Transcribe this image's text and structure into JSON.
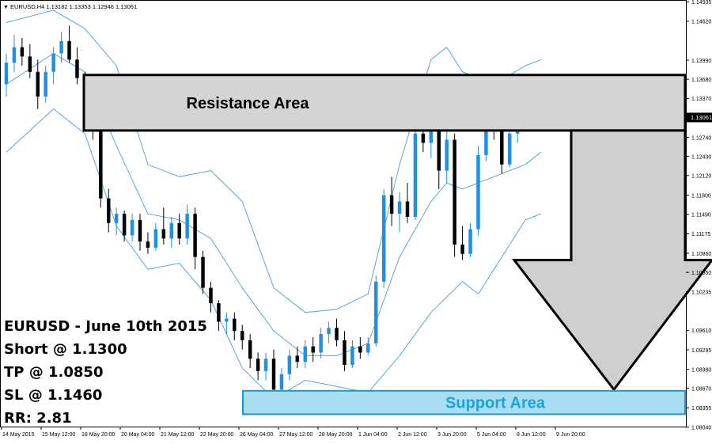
{
  "chart_header": "EURUSD,H4  1.13182 1.13353 1.12946 1.13061",
  "chart_data": {
    "type": "candlestick",
    "symbol": "EURUSD",
    "timeframe": "H4",
    "ohlc_header": [
      1.13182,
      1.13353,
      1.12946,
      1.13061
    ],
    "current_price": "1.13061",
    "ylim": [
      1.0805,
      1.1494
    ],
    "y_ticks": [
      "1.14935",
      "1.14620",
      "1.13990",
      "1.13680",
      "1.13370",
      "1.13061",
      "1.12740",
      "1.12430",
      "1.12120",
      "1.11800",
      "1.11490",
      "1.11175",
      "1.10860",
      "1.10550",
      "1.10235",
      "1.09610",
      "1.09295",
      "1.08980",
      "1.08670",
      "1.08355",
      "1.08040"
    ],
    "x_ticks": [
      "14 May 2015",
      "15 May 12:00",
      "18 May 20:00",
      "20 May 04:00",
      "21 May 12:00",
      "22 May 20:00",
      "26 May 04:00",
      "27 May 12:00",
      "28 May 20:00",
      "1 Jun 04:00",
      "2 Jun 12:00",
      "3 Jun 20:00",
      "5 Jun 04:00",
      "8 Jun 12:00",
      "9 Jun 20:00"
    ],
    "x_range": [
      0,
      68
    ],
    "candles": [
      [
        1.136,
        1.141,
        1.134,
        1.1395
      ],
      [
        1.1395,
        1.144,
        1.138,
        1.142
      ],
      [
        1.142,
        1.1435,
        1.139,
        1.1405
      ],
      [
        1.1405,
        1.1425,
        1.137,
        1.138
      ],
      [
        1.138,
        1.14,
        1.132,
        1.134
      ],
      [
        1.134,
        1.139,
        1.133,
        1.138
      ],
      [
        1.138,
        1.142,
        1.136,
        1.141
      ],
      [
        1.141,
        1.1445,
        1.1395,
        1.143
      ],
      [
        1.143,
        1.1455,
        1.1395,
        1.14
      ],
      [
        1.14,
        1.142,
        1.136,
        1.137
      ],
      [
        1.137,
        1.138,
        1.13,
        1.1315
      ],
      [
        1.1315,
        1.133,
        1.127,
        1.129
      ],
      [
        1.129,
        1.13,
        1.116,
        1.1175
      ],
      [
        1.1175,
        1.119,
        1.112,
        1.1135
      ],
      [
        1.1135,
        1.116,
        1.1115,
        1.115
      ],
      [
        1.115,
        1.1155,
        1.1105,
        1.1115
      ],
      [
        1.1115,
        1.115,
        1.1105,
        1.114
      ],
      [
        1.114,
        1.115,
        1.109,
        1.1105
      ],
      [
        1.1105,
        1.112,
        1.1085,
        1.1095
      ],
      [
        1.1095,
        1.1135,
        1.109,
        1.1125
      ],
      [
        1.1125,
        1.116,
        1.11,
        1.111
      ],
      [
        1.111,
        1.1145,
        1.1095,
        1.1135
      ],
      [
        1.1135,
        1.115,
        1.11,
        1.111
      ],
      [
        1.111,
        1.1165,
        1.11,
        1.115
      ],
      [
        1.115,
        1.116,
        1.106,
        1.108
      ],
      [
        1.108,
        1.109,
        1.102,
        1.103
      ],
      [
        1.103,
        1.104,
        1.099,
        1.1005
      ],
      [
        1.1005,
        1.101,
        1.096,
        1.0975
      ],
      [
        1.0975,
        1.099,
        1.0955,
        1.098
      ],
      [
        1.098,
        1.099,
        1.0945,
        1.096
      ],
      [
        1.096,
        1.097,
        1.093,
        1.0945
      ],
      [
        1.0945,
        1.0955,
        1.09,
        1.0915
      ],
      [
        1.0915,
        1.0925,
        1.088,
        1.0895
      ],
      [
        1.0895,
        1.0925,
        1.088,
        1.0915
      ],
      [
        1.0915,
        1.093,
        1.085,
        1.0865
      ],
      [
        1.0865,
        1.09,
        1.0855,
        1.089
      ],
      [
        1.089,
        1.093,
        1.088,
        1.092
      ],
      [
        1.092,
        1.0935,
        1.09,
        1.091
      ],
      [
        1.091,
        1.0945,
        1.09,
        1.0935
      ],
      [
        1.0935,
        1.095,
        1.091,
        1.0925
      ],
      [
        1.0925,
        1.0965,
        1.0915,
        1.0955
      ],
      [
        1.0955,
        1.0975,
        1.094,
        1.0965
      ],
      [
        1.0965,
        1.098,
        1.0935,
        1.0945
      ],
      [
        1.0945,
        1.096,
        1.0895,
        1.0905
      ],
      [
        1.0905,
        1.0945,
        1.09,
        1.0935
      ],
      [
        1.0935,
        1.095,
        1.0915,
        1.0925
      ],
      [
        1.0925,
        1.095,
        1.092,
        1.094
      ],
      [
        1.094,
        1.105,
        1.0935,
        1.104
      ],
      [
        1.104,
        1.119,
        1.103,
        1.118
      ],
      [
        1.118,
        1.121,
        1.113,
        1.115
      ],
      [
        1.115,
        1.1185,
        1.112,
        1.117
      ],
      [
        1.117,
        1.12,
        1.1135,
        1.1145
      ],
      [
        1.1145,
        1.129,
        1.114,
        1.128
      ],
      [
        1.128,
        1.132,
        1.125,
        1.1265
      ],
      [
        1.1265,
        1.1355,
        1.124,
        1.132
      ],
      [
        1.132,
        1.1365,
        1.119,
        1.122
      ],
      [
        1.122,
        1.1285,
        1.12,
        1.127
      ],
      [
        1.127,
        1.128,
        1.108,
        1.11
      ],
      [
        1.11,
        1.113,
        1.1075,
        1.1085
      ],
      [
        1.1085,
        1.1135,
        1.108,
        1.1125
      ],
      [
        1.1125,
        1.126,
        1.1115,
        1.1245
      ],
      [
        1.1245,
        1.1305,
        1.1235,
        1.1295
      ],
      [
        1.1295,
        1.132,
        1.127,
        1.1285
      ],
      [
        1.1285,
        1.13,
        1.1215,
        1.123
      ],
      [
        1.123,
        1.129,
        1.1225,
        1.128
      ],
      [
        1.128,
        1.131,
        1.1265,
        1.13
      ],
      [
        1.13,
        1.134,
        1.1285,
        1.1318
      ],
      [
        1.1318,
        1.1335,
        1.1295,
        1.1306
      ]
    ],
    "bollinger": {
      "upper": [
        [
          0,
          1.146
        ],
        [
          6,
          1.148
        ],
        [
          10,
          1.145
        ],
        [
          14,
          1.139
        ],
        [
          18,
          1.123
        ],
        [
          22,
          1.121
        ],
        [
          26,
          1.122
        ],
        [
          30,
          1.117
        ],
        [
          34,
          1.103
        ],
        [
          38,
          1.099
        ],
        [
          42,
          1.0995
        ],
        [
          46,
          1.102
        ],
        [
          50,
          1.123
        ],
        [
          54,
          1.14
        ],
        [
          56,
          1.142
        ],
        [
          58,
          1.138
        ],
        [
          62,
          1.136
        ],
        [
          66,
          1.139
        ],
        [
          68,
          1.14
        ]
      ],
      "middle": [
        [
          0,
          1.136
        ],
        [
          6,
          1.141
        ],
        [
          10,
          1.138
        ],
        [
          14,
          1.126
        ],
        [
          18,
          1.115
        ],
        [
          22,
          1.114
        ],
        [
          26,
          1.111
        ],
        [
          30,
          1.103
        ],
        [
          34,
          1.096
        ],
        [
          38,
          1.092
        ],
        [
          42,
          1.092
        ],
        [
          46,
          1.094
        ],
        [
          50,
          1.108
        ],
        [
          54,
          1.117
        ],
        [
          56,
          1.12
        ],
        [
          58,
          1.119
        ],
        [
          62,
          1.121
        ],
        [
          66,
          1.123
        ],
        [
          68,
          1.125
        ]
      ],
      "lower": [
        [
          0,
          1.125
        ],
        [
          6,
          1.132
        ],
        [
          10,
          1.128
        ],
        [
          14,
          1.113
        ],
        [
          18,
          1.106
        ],
        [
          22,
          1.107
        ],
        [
          26,
          1.101
        ],
        [
          30,
          1.09
        ],
        [
          34,
          1.085
        ],
        [
          38,
          1.088
        ],
        [
          42,
          1.087
        ],
        [
          46,
          1.086
        ],
        [
          50,
          1.092
        ],
        [
          54,
          1.099
        ],
        [
          58,
          1.104
        ],
        [
          60,
          1.102
        ],
        [
          62,
          1.106
        ],
        [
          66,
          1.114
        ],
        [
          68,
          1.115
        ]
      ]
    },
    "zones": {
      "resistance": {
        "label": "Resistance Area",
        "top": 1.1375,
        "bottom": 1.1285
      },
      "support": {
        "label": "Support Area",
        "top": 1.0863,
        "bottom": 1.0825
      }
    },
    "arrow": {
      "direction": "down",
      "from_price": 1.1285,
      "to_price": 1.0865
    }
  },
  "trade_info": {
    "line1": "EURUSD - June 10th 2015",
    "line2": "Short @ 1.1300",
    "line3": "TP @ 1.0850",
    "line4": "SL @ 1.1460",
    "line5": "RR: 2.81"
  },
  "colors": {
    "bull": "#1f8fe6",
    "bear": "#000000",
    "band": "#5aa5d6",
    "resistance_fill": "#d4d4d4",
    "support_fill": "#a8ddf2",
    "support_border": "#1a9ad4",
    "support_text": "#1aa3dc",
    "arrow_fill": "#cfcfcf"
  }
}
